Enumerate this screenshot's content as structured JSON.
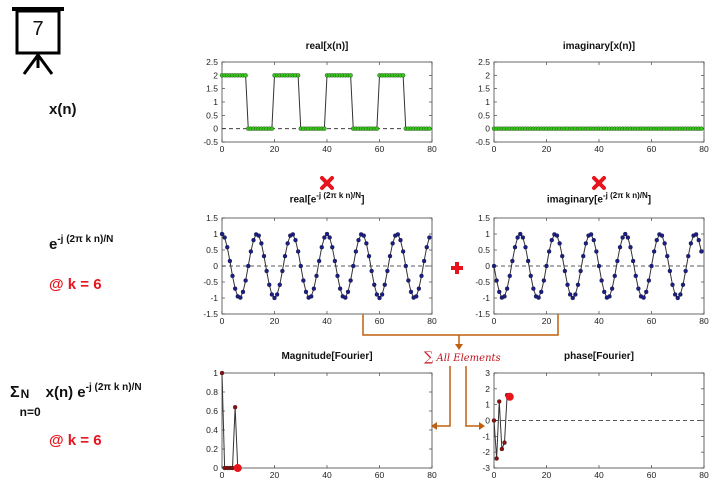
{
  "badge": {
    "number": "7"
  },
  "rows": {
    "row1": {
      "label": "x(n)"
    },
    "row2": {
      "base": "e",
      "exponent": "-j (2π k n)/N",
      "k_note": "@ k = 6"
    },
    "row3": {
      "sigma": "Σ",
      "sigma_upper": "N",
      "sigma_lower": "n=0",
      "term_a": "x(n) e",
      "exponent": "-j (2π k n)/N",
      "k_note": "@ k = 6"
    }
  },
  "annotations": {
    "sum_label": "All Elements",
    "sum_symbol": "∑"
  },
  "colors": {
    "green_marker": "#37c61a",
    "navy_marker": "#1a1e86",
    "red_marker": "#e8141d",
    "dark_red_marker": "#8b1010",
    "arrow": "#c0600f",
    "line": "#333333"
  },
  "chart_data": [
    {
      "id": "real-x",
      "type": "line",
      "title": "real[x(n)]",
      "xlim": [
        0,
        80
      ],
      "ylim": [
        0,
        2.5
      ],
      "yticks_from": -0.5,
      "xticks": [
        "0",
        "20",
        "40",
        "60",
        "80"
      ],
      "yticks": [
        "-0.5",
        "0",
        "0.5",
        "1",
        "1.5",
        "2",
        "2.5"
      ],
      "signal": "square",
      "period": 20,
      "duty": 10,
      "high": 2,
      "low": 0,
      "n_points": 80
    },
    {
      "id": "imag-x",
      "type": "line",
      "title": "imaginary[x(n)]",
      "xlim": [
        0,
        80
      ],
      "ylim": [
        -0.5,
        2.5
      ],
      "xticks": [
        "0",
        "20",
        "40",
        "60",
        "80"
      ],
      "yticks": [
        "-0.5",
        "0",
        "0.5",
        "1",
        "1.5",
        "2",
        "2.5"
      ],
      "signal": "zero",
      "n_points": 80
    },
    {
      "id": "real-exp",
      "type": "line",
      "title": "real[e",
      "title_exp": "-j (2π k n)/N",
      "title_close": "]",
      "xlim": [
        0,
        80
      ],
      "ylim": [
        -1.5,
        1.5
      ],
      "xticks": [
        "0",
        "20",
        "40",
        "60",
        "80"
      ],
      "yticks": [
        "-1.5",
        "-1",
        "-0.5",
        "0",
        "0.5",
        "1",
        "1.5"
      ],
      "signal": "cos",
      "k": 6,
      "N": 80,
      "n_points": 80
    },
    {
      "id": "imag-exp",
      "type": "line",
      "title": "imaginary[e",
      "title_exp": "-j (2π k n)/N",
      "title_close": "]",
      "xlim": [
        0,
        80
      ],
      "ylim": [
        -1.5,
        1.5
      ],
      "xticks": [
        "0",
        "20",
        "40",
        "60",
        "80"
      ],
      "yticks": [
        "-1.5",
        "-1",
        "-0.5",
        "0",
        "0.5",
        "1",
        "1.5"
      ],
      "signal": "nsin",
      "k": 6,
      "N": 80,
      "n_points": 80
    },
    {
      "id": "magnitude",
      "type": "line",
      "title": "Magnitude[Fourier]",
      "xlim": [
        0,
        80
      ],
      "ylim": [
        0,
        1
      ],
      "xticks": [
        "0",
        "20",
        "40",
        "60",
        "80"
      ],
      "yticks": [
        "0",
        "0.2",
        "0.4",
        "0.6",
        "0.8",
        "1"
      ],
      "x": [
        0,
        1,
        2,
        3,
        4,
        5,
        6
      ],
      "y": [
        1.0,
        0.0,
        0.0,
        0.0,
        0.0,
        0.64,
        0.0
      ],
      "current": {
        "x": 6,
        "y": 0.0
      }
    },
    {
      "id": "phase",
      "type": "line",
      "title": "phase[Fourier]",
      "xlim": [
        0,
        80
      ],
      "ylim": [
        -3,
        3
      ],
      "xticks": [
        "0",
        "20",
        "40",
        "60",
        "80"
      ],
      "yticks": [
        "-3",
        "-2",
        "-1",
        "0",
        "1",
        "2",
        "3"
      ],
      "x": [
        0,
        1,
        2,
        3,
        4,
        5,
        6
      ],
      "y": [
        0.0,
        -2.4,
        1.2,
        -1.8,
        -1.4,
        1.6,
        1.5
      ],
      "current": {
        "x": 6,
        "y": 1.5
      }
    }
  ]
}
